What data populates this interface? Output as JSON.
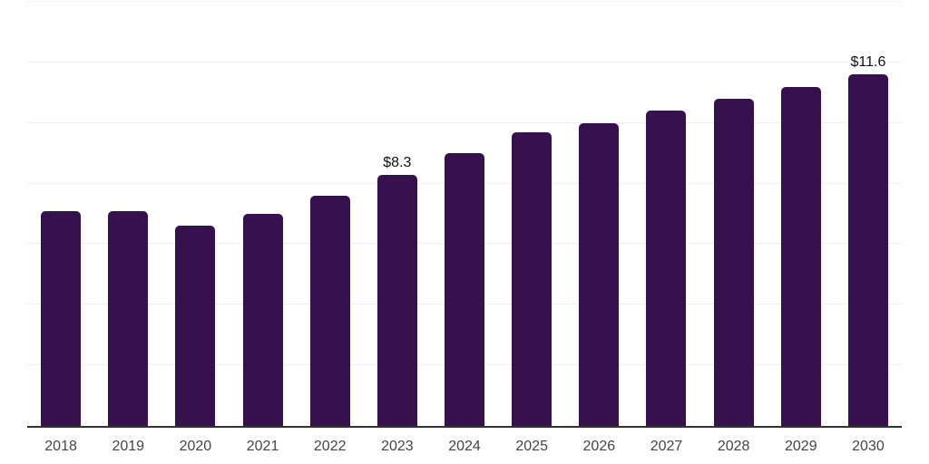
{
  "chart_style": {
    "background_color": "#ffffff",
    "bar_color": "#36114E",
    "gridline_color": "#f0f0f0",
    "axis_line_color": "#333333",
    "tick_label_color": "#444444",
    "data_label_color": "#111111"
  },
  "chart_data": {
    "type": "bar",
    "categories": [
      "2018",
      "2019",
      "2020",
      "2021",
      "2022",
      "2023",
      "2024",
      "2025",
      "2026",
      "2027",
      "2028",
      "2029",
      "2030"
    ],
    "values": [
      7.1,
      7.1,
      6.6,
      7.0,
      7.6,
      8.3,
      9.0,
      9.7,
      10.0,
      10.4,
      10.8,
      11.2,
      11.6
    ],
    "data_labels": [
      null,
      null,
      null,
      null,
      null,
      "$8.3",
      null,
      null,
      null,
      null,
      null,
      null,
      "$11.6"
    ],
    "ylim": [
      0,
      14
    ],
    "gridline_step": 2,
    "grid": true,
    "legend": false,
    "y_tick_labels_visible": false
  }
}
